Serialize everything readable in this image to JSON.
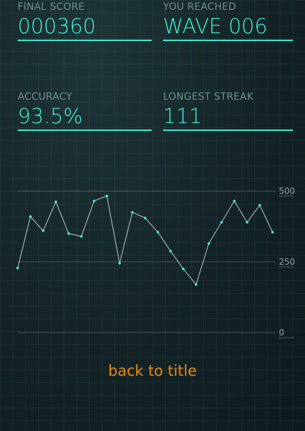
{
  "stats": {
    "score_label": "FINAL SCORE",
    "score_value": "000360",
    "wave_label": "YOU REACHED",
    "wave_value": "WAVE 006",
    "accuracy_label": "ACCURACY",
    "accuracy_value": "93.5%",
    "streak_label": "LONGEST STREAK",
    "streak_value": "111"
  },
  "chart_data": {
    "type": "line",
    "title": "",
    "xlabel": "",
    "ylabel": "",
    "ylim": [
      0,
      500
    ],
    "yticks": [
      "500",
      "250",
      "0"
    ],
    "grid": true,
    "series": [
      {
        "values": [
          228,
          410,
          360,
          462,
          350,
          340,
          465,
          483,
          245,
          425,
          405,
          355,
          288,
          225,
          170,
          315,
          390,
          465,
          390,
          450,
          355
        ]
      }
    ]
  },
  "actions": {
    "back_label": "back to title"
  },
  "colors": {
    "accent": "#40f3d8",
    "link": "#e8890f",
    "line": "#9fb0ae"
  }
}
